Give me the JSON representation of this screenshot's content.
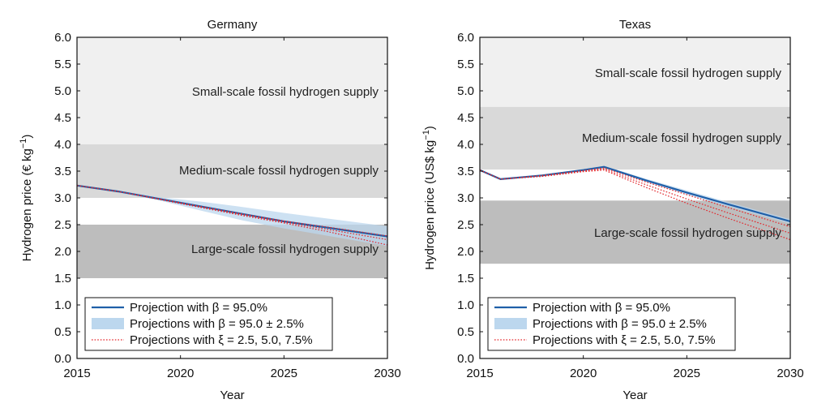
{
  "chart_data": [
    {
      "type": "line",
      "title": "Germany",
      "xlabel": "Year",
      "ylabel": "Hydrogen price (€ kg",
      "ylabel_sup": "−1",
      "ylabel_end": ")",
      "xlim": [
        2015,
        2030
      ],
      "ylim": [
        0,
        6
      ],
      "xticks": [
        "2015",
        "2020",
        "2025",
        "2030"
      ],
      "yticks": [
        "0.0",
        "0.5",
        "1.0",
        "1.5",
        "2.0",
        "2.5",
        "3.0",
        "3.5",
        "4.0",
        "4.5",
        "5.0",
        "5.5",
        "6.0"
      ],
      "bands": [
        {
          "label": "Small-scale fossil hydrogen supply",
          "y0": 4.0,
          "y1": 6.0,
          "color": "#f0f0f0"
        },
        {
          "label": "Medium-scale fossil hydrogen supply",
          "y0": 3.0,
          "y1": 4.0,
          "color": "#d9d9d9"
        },
        {
          "label": "Large-scale fossil hydrogen supply",
          "y0": 1.5,
          "y1": 2.5,
          "color": "#bdbdbd"
        }
      ],
      "series": [
        {
          "name": "Projection with β = 95.0%",
          "kind": "line",
          "color": "#1f5fa8",
          "x": [
            2015,
            2017,
            2019,
            2021,
            2023,
            2025,
            2027,
            2030
          ],
          "y": [
            3.23,
            3.12,
            2.98,
            2.84,
            2.7,
            2.56,
            2.45,
            2.28
          ]
        },
        {
          "name": "Projections with β = 95.0 ±  2.5%",
          "kind": "band",
          "color": "#bcd7ee",
          "x": [
            2015,
            2017,
            2019,
            2021,
            2023,
            2025,
            2027,
            2030
          ],
          "lower": [
            3.22,
            3.1,
            2.95,
            2.76,
            2.58,
            2.43,
            2.3,
            2.1
          ],
          "upper": [
            3.24,
            3.14,
            3.01,
            2.93,
            2.83,
            2.72,
            2.62,
            2.47
          ]
        },
        {
          "name": "Projections with ξ = 2.5, 5.0, 7.5%",
          "kind": "dotted",
          "color": "#e3262b",
          "lines": [
            {
              "x": [
                2015,
                2017,
                2019,
                2021,
                2023,
                2025,
                2027,
                2030
              ],
              "y": [
                3.23,
                3.12,
                2.98,
                2.84,
                2.7,
                2.57,
                2.46,
                2.29
              ]
            },
            {
              "x": [
                2015,
                2017,
                2019,
                2021,
                2023,
                2025,
                2027,
                2030
              ],
              "y": [
                3.23,
                3.12,
                2.98,
                2.83,
                2.69,
                2.55,
                2.42,
                2.22
              ]
            },
            {
              "x": [
                2015,
                2017,
                2019,
                2021,
                2023,
                2025,
                2027,
                2030
              ],
              "y": [
                3.23,
                3.12,
                2.97,
                2.82,
                2.67,
                2.53,
                2.38,
                2.12
              ]
            }
          ]
        }
      ]
    },
    {
      "type": "line",
      "title": "Texas",
      "xlabel": "Year",
      "ylabel": "Hydrogen price (US$ kg",
      "ylabel_sup": "−1",
      "ylabel_end": ")",
      "xlim": [
        2015,
        2030
      ],
      "ylim": [
        0,
        6
      ],
      "xticks": [
        "2015",
        "2020",
        "2025",
        "2030"
      ],
      "yticks": [
        "0.0",
        "0.5",
        "1.0",
        "1.5",
        "2.0",
        "2.5",
        "3.0",
        "3.5",
        "4.0",
        "4.5",
        "5.0",
        "5.5",
        "6.0"
      ],
      "bands": [
        {
          "label": "Small-scale fossil hydrogen supply",
          "y0": 4.7,
          "y1": 6.0,
          "color": "#f0f0f0"
        },
        {
          "label": "Medium-scale fossil hydrogen supply",
          "y0": 3.53,
          "y1": 4.7,
          "color": "#d9d9d9"
        },
        {
          "label": "Large-scale fossil hydrogen supply",
          "y0": 1.77,
          "y1": 2.95,
          "color": "#bdbdbd"
        }
      ],
      "series": [
        {
          "name": "Projection with β = 95.0%",
          "kind": "line",
          "color": "#1f5fa8",
          "x": [
            2015,
            2016,
            2018,
            2020,
            2021,
            2023,
            2025,
            2027,
            2030
          ],
          "y": [
            3.52,
            3.35,
            3.42,
            3.52,
            3.58,
            3.33,
            3.1,
            2.88,
            2.56
          ]
        },
        {
          "name": "Projections with β = 95.0 ± 2.5%",
          "kind": "band",
          "color": "#bcd7ee",
          "x": [
            2015,
            2016,
            2018,
            2020,
            2021,
            2023,
            2025,
            2027,
            2030
          ],
          "lower": [
            3.51,
            3.34,
            3.41,
            3.5,
            3.56,
            3.3,
            3.06,
            2.84,
            2.52
          ],
          "upper": [
            3.53,
            3.36,
            3.43,
            3.54,
            3.6,
            3.36,
            3.14,
            2.92,
            2.6
          ]
        },
        {
          "name": "Projections with ξ = 2.5, 5.0, 7.5%",
          "kind": "dotted",
          "color": "#e3262b",
          "lines": [
            {
              "x": [
                2015,
                2016,
                2018,
                2020,
                2021,
                2023,
                2025,
                2027,
                2030
              ],
              "y": [
                3.52,
                3.35,
                3.42,
                3.51,
                3.56,
                3.3,
                3.06,
                2.82,
                2.46
              ]
            },
            {
              "x": [
                2015,
                2016,
                2018,
                2020,
                2021,
                2023,
                2025,
                2027,
                2030
              ],
              "y": [
                3.52,
                3.35,
                3.41,
                3.5,
                3.54,
                3.25,
                2.98,
                2.72,
                2.34
              ]
            },
            {
              "x": [
                2015,
                2016,
                2018,
                2020,
                2021,
                2023,
                2025,
                2027,
                2030
              ],
              "y": [
                3.52,
                3.35,
                3.4,
                3.49,
                3.52,
                3.2,
                2.9,
                2.62,
                2.22
              ]
            }
          ]
        }
      ]
    }
  ]
}
